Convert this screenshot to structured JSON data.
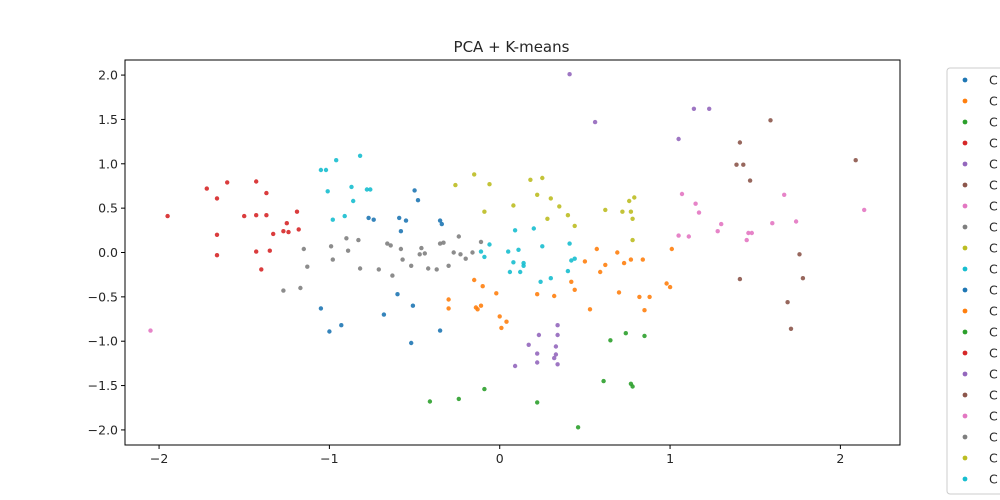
{
  "chart_data": {
    "type": "scatter",
    "title": "PCA + K-means",
    "xlabel": "",
    "ylabel": "",
    "xlim": [
      -2.2,
      2.35
    ],
    "ylim": [
      -2.17,
      2.17
    ],
    "xticks": [
      -2,
      -1,
      0,
      1,
      2
    ],
    "xtick_labels": [
      "−2",
      "−1",
      "0",
      "1",
      "2"
    ],
    "yticks": [
      -2.0,
      -1.5,
      -1.0,
      -0.5,
      0.0,
      0.5,
      1.0,
      1.5,
      2.0
    ],
    "ytick_labels": [
      "−2.0",
      "−1.5",
      "−1.0",
      "−0.5",
      "0.0",
      "0.5",
      "1.0",
      "1.5",
      "2.0"
    ],
    "legend_placement": "outside right, clipped",
    "legend_entries": [
      "C",
      "C",
      "C",
      "C",
      "C",
      "C",
      "C",
      "C",
      "C",
      "C",
      "C",
      "C",
      "C",
      "C",
      "C",
      "C",
      "C",
      "C",
      "C",
      "C"
    ],
    "grid": false,
    "series": [
      {
        "color": "#1f77b4",
        "points": [
          [
            -1.05,
            -0.63
          ],
          [
            -1.0,
            -0.89
          ],
          [
            -0.93,
            -0.82
          ],
          [
            -0.77,
            0.39
          ],
          [
            -0.74,
            0.37
          ],
          [
            -0.68,
            -0.7
          ],
          [
            -0.6,
            -0.47
          ],
          [
            -0.59,
            0.39
          ],
          [
            -0.58,
            0.24
          ],
          [
            -0.55,
            0.36
          ],
          [
            -0.52,
            -1.02
          ],
          [
            -0.51,
            -0.6
          ],
          [
            -0.5,
            0.7
          ],
          [
            -0.48,
            0.59
          ],
          [
            -0.35,
            0.36
          ],
          [
            -0.34,
            0.32
          ],
          [
            -0.35,
            -0.88
          ]
        ]
      },
      {
        "color": "#ff7f0e",
        "points": [
          [
            -0.3,
            -0.53
          ],
          [
            -0.3,
            -0.63
          ],
          [
            -0.15,
            -0.31
          ],
          [
            -0.14,
            -0.62
          ],
          [
            -0.13,
            -0.64
          ],
          [
            -0.11,
            -0.6
          ],
          [
            -0.1,
            -0.38
          ],
          [
            -0.02,
            -0.46
          ],
          [
            0.0,
            -0.72
          ],
          [
            0.01,
            -0.85
          ],
          [
            0.04,
            -0.78
          ],
          [
            0.22,
            -0.47
          ],
          [
            0.32,
            -0.49
          ],
          [
            0.42,
            -0.33
          ],
          [
            0.44,
            -0.42
          ],
          [
            0.5,
            -0.1
          ],
          [
            0.53,
            -0.64
          ],
          [
            0.57,
            0.04
          ],
          [
            0.59,
            -0.22
          ],
          [
            0.62,
            -0.14
          ],
          [
            0.69,
            0.0
          ],
          [
            0.7,
            -0.45
          ],
          [
            0.73,
            -0.12
          ],
          [
            0.77,
            -0.08
          ],
          [
            0.82,
            -0.5
          ],
          [
            0.84,
            -0.08
          ],
          [
            0.85,
            -0.65
          ],
          [
            0.88,
            -0.5
          ],
          [
            0.98,
            -0.35
          ],
          [
            1.0,
            -0.39
          ],
          [
            1.01,
            0.04
          ]
        ]
      },
      {
        "color": "#2ca02c",
        "points": [
          [
            -0.41,
            -1.68
          ],
          [
            -0.24,
            -1.65
          ],
          [
            -0.09,
            -1.54
          ],
          [
            0.22,
            -1.69
          ],
          [
            0.46,
            -1.97
          ],
          [
            0.61,
            -1.45
          ],
          [
            0.65,
            -0.99
          ],
          [
            0.74,
            -0.91
          ],
          [
            0.77,
            -1.48
          ],
          [
            0.78,
            -1.51
          ],
          [
            0.85,
            -0.94
          ]
        ]
      },
      {
        "color": "#d62728",
        "points": [
          [
            -1.95,
            0.41
          ],
          [
            -1.72,
            0.72
          ],
          [
            -1.66,
            0.61
          ],
          [
            -1.66,
            0.2
          ],
          [
            -1.66,
            -0.03
          ],
          [
            -1.6,
            0.79
          ],
          [
            -1.5,
            0.41
          ],
          [
            -1.43,
            0.8
          ],
          [
            -1.43,
            0.42
          ],
          [
            -1.43,
            0.01
          ],
          [
            -1.4,
            -0.19
          ],
          [
            -1.37,
            0.67
          ],
          [
            -1.37,
            0.42
          ],
          [
            -1.35,
            0.02
          ],
          [
            -1.33,
            0.21
          ],
          [
            -1.27,
            0.24
          ],
          [
            -1.25,
            0.33
          ],
          [
            -1.24,
            0.23
          ],
          [
            -1.19,
            0.46
          ],
          [
            -1.18,
            0.26
          ]
        ]
      },
      {
        "color": "#9467bd",
        "points": [
          [
            0.09,
            -1.28
          ],
          [
            0.17,
            -1.04
          ],
          [
            0.22,
            -1.14
          ],
          [
            0.22,
            -1.24
          ],
          [
            0.23,
            -0.93
          ],
          [
            0.32,
            -1.19
          ],
          [
            0.33,
            -1.06
          ],
          [
            0.33,
            -1.15
          ],
          [
            0.34,
            -1.26
          ],
          [
            0.34,
            -0.93
          ],
          [
            0.34,
            -0.82
          ],
          [
            0.41,
            2.01
          ],
          [
            0.56,
            1.47
          ],
          [
            1.05,
            1.28
          ],
          [
            1.14,
            1.62
          ],
          [
            1.23,
            1.62
          ]
        ]
      },
      {
        "color": "#8c564b",
        "points": [
          [
            1.39,
            0.99
          ],
          [
            1.41,
            1.24
          ],
          [
            1.43,
            0.99
          ],
          [
            1.47,
            0.81
          ],
          [
            1.59,
            1.49
          ],
          [
            1.41,
            -0.3
          ],
          [
            1.69,
            -0.56
          ],
          [
            1.71,
            -0.86
          ],
          [
            1.76,
            -0.02
          ],
          [
            1.78,
            -0.29
          ],
          [
            2.09,
            1.04
          ]
        ]
      },
      {
        "color": "#e377c2",
        "points": [
          [
            -2.05,
            -0.88
          ],
          [
            1.05,
            0.19
          ],
          [
            1.07,
            0.66
          ],
          [
            1.11,
            0.18
          ],
          [
            1.15,
            0.55
          ],
          [
            1.17,
            0.45
          ],
          [
            1.28,
            0.24
          ],
          [
            1.3,
            0.32
          ],
          [
            1.45,
            0.14
          ],
          [
            1.46,
            0.22
          ],
          [
            1.48,
            0.22
          ],
          [
            1.6,
            0.33
          ],
          [
            1.67,
            0.65
          ],
          [
            1.74,
            0.35
          ],
          [
            2.14,
            0.48
          ]
        ]
      },
      {
        "color": "#7f7f7f",
        "points": [
          [
            -1.27,
            -0.43
          ],
          [
            -1.17,
            -0.4
          ],
          [
            -1.15,
            0.04
          ],
          [
            -1.13,
            -0.16
          ],
          [
            -0.99,
            0.07
          ],
          [
            -0.98,
            -0.08
          ],
          [
            -0.9,
            0.16
          ],
          [
            -0.89,
            0.02
          ],
          [
            -0.83,
            0.14
          ],
          [
            -0.82,
            -0.18
          ],
          [
            -0.71,
            -0.19
          ],
          [
            -0.66,
            0.1
          ],
          [
            -0.64,
            0.08
          ],
          [
            -0.63,
            -0.26
          ],
          [
            -0.58,
            0.04
          ],
          [
            -0.57,
            -0.08
          ],
          [
            -0.52,
            -0.15
          ],
          [
            -0.47,
            -0.02
          ],
          [
            -0.46,
            0.05
          ],
          [
            -0.44,
            -0.01
          ],
          [
            -0.42,
            -0.18
          ],
          [
            -0.37,
            -0.19
          ],
          [
            -0.35,
            0.1
          ],
          [
            -0.33,
            0.11
          ],
          [
            -0.3,
            -0.15
          ],
          [
            -0.27,
            0.0
          ],
          [
            -0.24,
            0.18
          ],
          [
            -0.23,
            -0.02
          ],
          [
            -0.2,
            -0.07
          ],
          [
            -0.16,
            0.0
          ],
          [
            -0.11,
            0.12
          ]
        ]
      },
      {
        "color": "#bcbd22",
        "points": [
          [
            -0.26,
            0.76
          ],
          [
            -0.15,
            0.88
          ],
          [
            -0.09,
            0.46
          ],
          [
            -0.06,
            0.77
          ],
          [
            0.08,
            0.53
          ],
          [
            0.18,
            0.82
          ],
          [
            0.22,
            0.65
          ],
          [
            0.25,
            0.84
          ],
          [
            0.28,
            0.38
          ],
          [
            0.3,
            0.61
          ],
          [
            0.35,
            0.52
          ],
          [
            0.4,
            0.42
          ],
          [
            0.44,
            0.3
          ],
          [
            0.62,
            0.48
          ],
          [
            0.72,
            0.46
          ],
          [
            0.76,
            0.58
          ],
          [
            0.77,
            0.46
          ],
          [
            0.78,
            0.38
          ],
          [
            0.78,
            0.14
          ],
          [
            0.79,
            0.62
          ]
        ]
      },
      {
        "color": "#17becf",
        "points": [
          [
            -1.05,
            0.93
          ],
          [
            -1.02,
            0.93
          ],
          [
            -1.01,
            0.69
          ],
          [
            -0.98,
            0.37
          ],
          [
            -0.96,
            1.04
          ],
          [
            -0.91,
            0.41
          ],
          [
            -0.87,
            0.74
          ],
          [
            -0.86,
            0.58
          ],
          [
            -0.82,
            1.09
          ],
          [
            -0.78,
            0.71
          ],
          [
            -0.76,
            0.71
          ],
          [
            -0.11,
            0.01
          ],
          [
            -0.09,
            -0.05
          ],
          [
            -0.06,
            0.09
          ],
          [
            0.05,
            0.01
          ],
          [
            0.06,
            -0.22
          ],
          [
            0.08,
            -0.11
          ],
          [
            0.09,
            0.25
          ],
          [
            0.11,
            0.03
          ],
          [
            0.12,
            -0.22
          ],
          [
            0.14,
            -0.15
          ],
          [
            0.14,
            -0.12
          ],
          [
            0.2,
            0.27
          ],
          [
            0.24,
            -0.33
          ],
          [
            0.25,
            0.07
          ],
          [
            0.3,
            -0.29
          ],
          [
            0.4,
            -0.21
          ],
          [
            0.41,
            0.1
          ],
          [
            0.42,
            -0.09
          ],
          [
            0.44,
            -0.07
          ]
        ]
      }
    ]
  }
}
